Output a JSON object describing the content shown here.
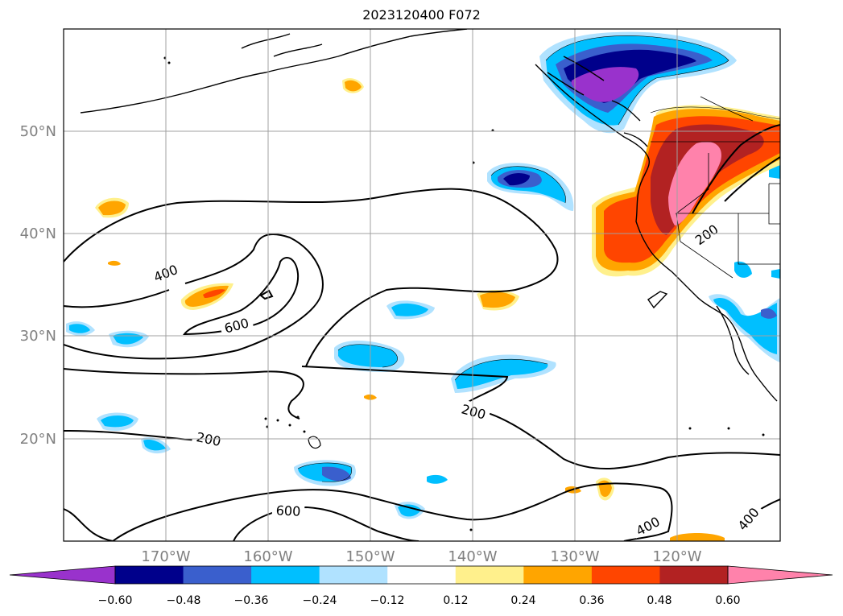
{
  "title": "2023120400 F072",
  "map": {
    "lon_ticks": [
      "170°W",
      "160°W",
      "150°W",
      "140°W",
      "130°W",
      "120°W"
    ],
    "lat_ticks": [
      "50°N",
      "40°N",
      "30°N",
      "20°N"
    ],
    "contour_labels": [
      "400",
      "600",
      "200",
      "200",
      "600",
      "400",
      "400",
      "200"
    ],
    "grid": true,
    "tick_label_color": "#808080"
  },
  "colorbar": {
    "ticks": [
      "−0.60",
      "−0.48",
      "−0.36",
      "−0.24",
      "−0.12",
      "0.12",
      "0.24",
      "0.36",
      "0.48",
      "0.60"
    ],
    "colors": [
      "#9932cc",
      "#00008b",
      "#3a5fcd",
      "#00bfff",
      "#b0e2ff",
      "#ffffff",
      "#fff08c",
      "#ffa500",
      "#ff4500",
      "#b22222",
      "#ff82ab",
      "#ff82ab"
    ]
  }
}
